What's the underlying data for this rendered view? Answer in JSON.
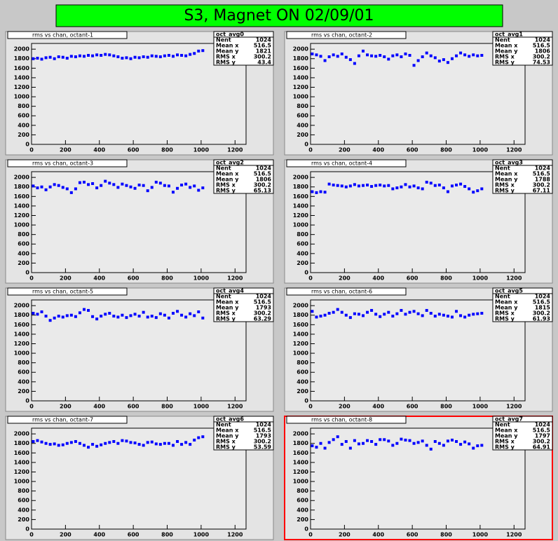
{
  "title": "S3, Magnet ON 02/09/01",
  "chart_data": [
    {
      "type": "scatter",
      "title": "rms vs chan, octant-1",
      "color": "#0000ff",
      "xlim": [
        0,
        1265
      ],
      "ylim": [
        0,
        2120
      ],
      "xticks": [
        0,
        200,
        400,
        600,
        800,
        1000,
        1200
      ],
      "yticks": [
        0,
        200,
        400,
        600,
        800,
        1000,
        1200,
        1400,
        1600,
        1800,
        2000
      ],
      "stats": {
        "name": "oct_avg0",
        "entries": [
          {
            "label": "Nent",
            "value": 1024
          },
          {
            "label": "Mean x",
            "value": 516.5
          },
          {
            "label": "Mean y",
            "value": 1821
          },
          {
            "label": "RMS x",
            "value": 300.2
          },
          {
            "label": "RMS y",
            "value": 43.4
          }
        ]
      },
      "x": [
        10,
        35,
        60,
        85,
        110,
        135,
        160,
        185,
        210,
        235,
        260,
        285,
        310,
        335,
        360,
        385,
        410,
        435,
        460,
        485,
        510,
        535,
        560,
        585,
        610,
        635,
        660,
        685,
        710,
        735,
        760,
        785,
        810,
        835,
        860,
        885,
        910,
        935,
        960,
        985,
        1010
      ],
      "values": [
        1800,
        1810,
        1790,
        1820,
        1830,
        1800,
        1840,
        1830,
        1810,
        1850,
        1840,
        1860,
        1850,
        1870,
        1860,
        1880,
        1870,
        1890,
        1880,
        1860,
        1840,
        1810,
        1820,
        1800,
        1830,
        1820,
        1840,
        1830,
        1860,
        1850,
        1840,
        1860,
        1870,
        1850,
        1880,
        1870,
        1860,
        1890,
        1910,
        1960,
        1970
      ]
    },
    {
      "type": "scatter",
      "title": "rms vs chan, octant-2",
      "color": "#0000ff",
      "xlim": [
        0,
        1265
      ],
      "ylim": [
        0,
        2120
      ],
      "xticks": [
        0,
        200,
        400,
        600,
        800,
        1000,
        1200
      ],
      "yticks": [
        0,
        200,
        400,
        600,
        800,
        1000,
        1200,
        1400,
        1600,
        1800,
        2000
      ],
      "stats": {
        "name": "oct_avg1",
        "entries": [
          {
            "label": "Nent",
            "value": 1024
          },
          {
            "label": "Mean x",
            "value": 516.5
          },
          {
            "label": "Mean y",
            "value": 1806
          },
          {
            "label": "RMS x",
            "value": 300.2
          },
          {
            "label": "RMS y",
            "value": 74.53
          }
        ]
      },
      "x": [
        10,
        35,
        60,
        85,
        110,
        135,
        160,
        185,
        210,
        235,
        260,
        285,
        310,
        335,
        360,
        385,
        410,
        435,
        460,
        485,
        510,
        535,
        560,
        585,
        610,
        635,
        660,
        685,
        710,
        735,
        760,
        785,
        810,
        835,
        860,
        885,
        910,
        935,
        960,
        985,
        1010
      ],
      "values": [
        1900,
        1880,
        1850,
        1760,
        1840,
        1880,
        1850,
        1900,
        1830,
        1780,
        1700,
        1860,
        1960,
        1880,
        1860,
        1850,
        1870,
        1840,
        1790,
        1860,
        1880,
        1840,
        1900,
        1870,
        1660,
        1760,
        1840,
        1920,
        1860,
        1820,
        1750,
        1780,
        1720,
        1800,
        1860,
        1920,
        1880,
        1850,
        1880,
        1860,
        1870
      ]
    },
    {
      "type": "scatter",
      "title": "rms vs chan, octant-3",
      "color": "#0000ff",
      "xlim": [
        0,
        1265
      ],
      "ylim": [
        0,
        2120
      ],
      "xticks": [
        0,
        200,
        400,
        600,
        800,
        1000,
        1200
      ],
      "yticks": [
        0,
        200,
        400,
        600,
        800,
        1000,
        1200,
        1400,
        1600,
        1800,
        2000
      ],
      "stats": {
        "name": "oct_avg2",
        "entries": [
          {
            "label": "Nent",
            "value": 1024
          },
          {
            "label": "Mean x",
            "value": 516.5
          },
          {
            "label": "Mean y",
            "value": 1806
          },
          {
            "label": "RMS x",
            "value": 300.2
          },
          {
            "label": "RMS y",
            "value": 65.13
          }
        ]
      },
      "x": [
        10,
        35,
        60,
        85,
        110,
        135,
        160,
        185,
        210,
        235,
        260,
        285,
        310,
        335,
        360,
        385,
        410,
        435,
        460,
        485,
        510,
        535,
        560,
        585,
        610,
        635,
        660,
        685,
        710,
        735,
        760,
        785,
        810,
        835,
        860,
        885,
        910,
        935,
        960,
        985,
        1010
      ],
      "values": [
        1820,
        1780,
        1800,
        1740,
        1800,
        1850,
        1830,
        1790,
        1760,
        1680,
        1760,
        1890,
        1900,
        1850,
        1870,
        1780,
        1830,
        1920,
        1880,
        1850,
        1790,
        1860,
        1830,
        1800,
        1770,
        1840,
        1830,
        1720,
        1790,
        1900,
        1880,
        1830,
        1820,
        1690,
        1770,
        1840,
        1860,
        1790,
        1820,
        1730,
        1780
      ]
    },
    {
      "type": "scatter",
      "title": "rms vs chan, octant-4",
      "color": "#0000ff",
      "xlim": [
        0,
        1265
      ],
      "ylim": [
        0,
        2120
      ],
      "xticks": [
        0,
        200,
        400,
        600,
        800,
        1000,
        1200
      ],
      "yticks": [
        0,
        200,
        400,
        600,
        800,
        1000,
        1200,
        1400,
        1600,
        1800,
        2000
      ],
      "stats": {
        "name": "oct_avg3",
        "entries": [
          {
            "label": "Nent",
            "value": 1024
          },
          {
            "label": "Mean x",
            "value": 516.5
          },
          {
            "label": "Mean y",
            "value": 1788
          },
          {
            "label": "RMS x",
            "value": 300.2
          },
          {
            "label": "RMS y",
            "value": 67.11
          }
        ]
      },
      "x": [
        10,
        35,
        60,
        85,
        110,
        135,
        160,
        185,
        210,
        235,
        260,
        285,
        310,
        335,
        360,
        385,
        410,
        435,
        460,
        485,
        510,
        535,
        560,
        585,
        610,
        635,
        660,
        685,
        710,
        735,
        760,
        785,
        810,
        835,
        860,
        885,
        910,
        935,
        960,
        985,
        1010
      ],
      "values": [
        1700,
        1680,
        1700,
        1690,
        1860,
        1840,
        1830,
        1820,
        1800,
        1820,
        1850,
        1820,
        1830,
        1840,
        1810,
        1830,
        1840,
        1820,
        1830,
        1760,
        1780,
        1800,
        1850,
        1800,
        1820,
        1780,
        1760,
        1900,
        1880,
        1830,
        1840,
        1780,
        1700,
        1820,
        1840,
        1860,
        1810,
        1760,
        1690,
        1720,
        1760
      ]
    },
    {
      "type": "scatter",
      "title": "rms vs chan, octant-5",
      "color": "#0000ff",
      "xlim": [
        0,
        1265
      ],
      "ylim": [
        0,
        2120
      ],
      "xticks": [
        0,
        200,
        400,
        600,
        800,
        1000,
        1200
      ],
      "yticks": [
        0,
        200,
        400,
        600,
        800,
        1000,
        1200,
        1400,
        1600,
        1800,
        2000
      ],
      "stats": {
        "name": "oct_avg4",
        "entries": [
          {
            "label": "Nent",
            "value": 1024
          },
          {
            "label": "Mean x",
            "value": 516.5
          },
          {
            "label": "Mean y",
            "value": 1793
          },
          {
            "label": "RMS x",
            "value": 300.2
          },
          {
            "label": "RMS y",
            "value": 63.29
          }
        ]
      },
      "x": [
        10,
        35,
        60,
        85,
        110,
        135,
        160,
        185,
        210,
        235,
        260,
        285,
        310,
        335,
        360,
        385,
        410,
        435,
        460,
        485,
        510,
        535,
        560,
        585,
        610,
        635,
        660,
        685,
        710,
        735,
        760,
        785,
        810,
        835,
        860,
        885,
        910,
        935,
        960,
        985,
        1010
      ],
      "values": [
        1840,
        1820,
        1870,
        1780,
        1690,
        1740,
        1780,
        1760,
        1790,
        1800,
        1770,
        1850,
        1920,
        1900,
        1770,
        1720,
        1780,
        1820,
        1840,
        1780,
        1760,
        1800,
        1750,
        1790,
        1820,
        1780,
        1860,
        1760,
        1780,
        1750,
        1830,
        1800,
        1740,
        1840,
        1880,
        1800,
        1760,
        1830,
        1790,
        1870,
        1740
      ]
    },
    {
      "type": "scatter",
      "title": "rms vs chan, octant-6",
      "color": "#0000ff",
      "xlim": [
        0,
        1265
      ],
      "ylim": [
        0,
        2120
      ],
      "xticks": [
        0,
        200,
        400,
        600,
        800,
        1000,
        1200
      ],
      "yticks": [
        0,
        200,
        400,
        600,
        800,
        1000,
        1200,
        1400,
        1600,
        1800,
        2000
      ],
      "stats": {
        "name": "oct_avg5",
        "entries": [
          {
            "label": "Nent",
            "value": 1024
          },
          {
            "label": "Mean x",
            "value": 516.5
          },
          {
            "label": "Mean y",
            "value": 1815
          },
          {
            "label": "RMS x",
            "value": 300.2
          },
          {
            "label": "RMS y",
            "value": 61.93
          }
        ]
      },
      "x": [
        10,
        35,
        60,
        85,
        110,
        135,
        160,
        185,
        210,
        235,
        260,
        285,
        310,
        335,
        360,
        385,
        410,
        435,
        460,
        485,
        510,
        535,
        560,
        585,
        610,
        635,
        660,
        685,
        710,
        735,
        760,
        785,
        810,
        835,
        860,
        885,
        910,
        935,
        960,
        985,
        1010
      ],
      "values": [
        1880,
        1760,
        1780,
        1800,
        1840,
        1860,
        1920,
        1860,
        1800,
        1750,
        1830,
        1820,
        1790,
        1860,
        1900,
        1820,
        1770,
        1820,
        1860,
        1780,
        1830,
        1900,
        1820,
        1860,
        1880,
        1830,
        1790,
        1900,
        1840,
        1780,
        1820,
        1800,
        1780,
        1760,
        1880,
        1790,
        1760,
        1800,
        1820,
        1830,
        1840
      ]
    },
    {
      "type": "scatter",
      "title": "rms vs chan, octant-7",
      "color": "#0000ff",
      "xlim": [
        0,
        1265
      ],
      "ylim": [
        0,
        2120
      ],
      "xticks": [
        0,
        200,
        400,
        600,
        800,
        1000,
        1200
      ],
      "yticks": [
        0,
        200,
        400,
        600,
        800,
        1000,
        1200,
        1400,
        1600,
        1800,
        2000
      ],
      "stats": {
        "name": "oct_avg6",
        "entries": [
          {
            "label": "Nent",
            "value": 1024
          },
          {
            "label": "Mean x",
            "value": 516.5
          },
          {
            "label": "Mean y",
            "value": 1793
          },
          {
            "label": "RMS x",
            "value": 300.2
          },
          {
            "label": "RMS y",
            "value": 53.59
          }
        ]
      },
      "x": [
        10,
        35,
        60,
        85,
        110,
        135,
        160,
        185,
        210,
        235,
        260,
        285,
        310,
        335,
        360,
        385,
        410,
        435,
        460,
        485,
        510,
        535,
        560,
        585,
        610,
        635,
        660,
        685,
        710,
        735,
        760,
        785,
        810,
        835,
        860,
        885,
        910,
        935,
        960,
        985,
        1010
      ],
      "values": [
        1840,
        1860,
        1830,
        1800,
        1780,
        1790,
        1760,
        1770,
        1800,
        1820,
        1840,
        1800,
        1760,
        1720,
        1780,
        1740,
        1770,
        1800,
        1820,
        1840,
        1800,
        1860,
        1850,
        1820,
        1810,
        1780,
        1760,
        1820,
        1830,
        1790,
        1780,
        1800,
        1800,
        1760,
        1840,
        1780,
        1820,
        1780,
        1870,
        1920,
        1940
      ]
    },
    {
      "type": "scatter",
      "title": "rms vs chan, octant-8",
      "color": "#0000ff",
      "xlim": [
        0,
        1265
      ],
      "ylim": [
        0,
        2120
      ],
      "selected": true,
      "xticks": [
        0,
        200,
        400,
        600,
        800,
        1000,
        1200
      ],
      "yticks": [
        0,
        200,
        400,
        600,
        800,
        1000,
        1200,
        1400,
        1600,
        1800,
        2000
      ],
      "stats": {
        "name": "oct_avg7",
        "entries": [
          {
            "label": "Nent",
            "value": 1024
          },
          {
            "label": "Mean x",
            "value": 516.5
          },
          {
            "label": "Mean y",
            "value": 1797
          },
          {
            "label": "RMS x",
            "value": 300.2
          },
          {
            "label": "RMS y",
            "value": 64.91
          }
        ]
      },
      "x": [
        10,
        35,
        60,
        85,
        110,
        135,
        160,
        185,
        210,
        235,
        260,
        285,
        310,
        335,
        360,
        385,
        410,
        435,
        460,
        485,
        510,
        535,
        560,
        585,
        610,
        635,
        660,
        685,
        710,
        735,
        760,
        785,
        810,
        835,
        860,
        885,
        910,
        935,
        960,
        985,
        1010
      ],
      "values": [
        1750,
        1720,
        1800,
        1700,
        1820,
        1880,
        1940,
        1780,
        1840,
        1700,
        1860,
        1790,
        1800,
        1860,
        1840,
        1780,
        1880,
        1880,
        1850,
        1760,
        1800,
        1890,
        1870,
        1860,
        1800,
        1820,
        1850,
        1760,
        1680,
        1840,
        1800,
        1760,
        1850,
        1870,
        1840,
        1780,
        1830,
        1790,
        1700,
        1750,
        1760
      ]
    }
  ]
}
